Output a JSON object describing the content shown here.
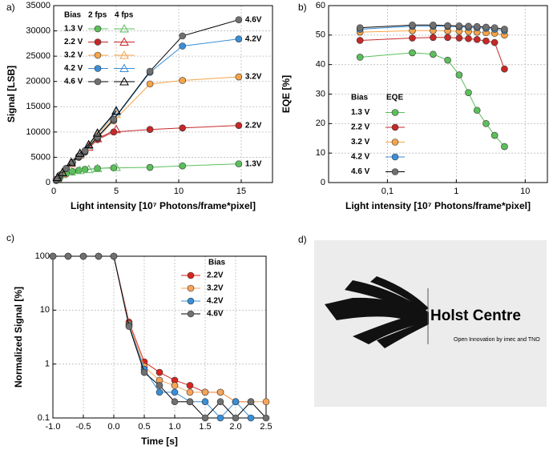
{
  "chart_data": [
    {
      "type": "line",
      "panel_label": "a)",
      "xlabel": "Light intensity [10⁷ Photons/frame*pixel]",
      "ylabel": "Signal [LSB]",
      "xlim": [
        0,
        17.5
      ],
      "ylim": [
        0,
        35000
      ],
      "xticks": [
        0,
        5,
        10,
        15
      ],
      "yticks": [
        0,
        5000,
        10000,
        15000,
        20000,
        25000,
        30000,
        35000
      ],
      "grid": true,
      "legend_title": "Bias",
      "marker_labels": [
        "2 fps",
        "4 fps"
      ],
      "series": [
        {
          "name": "1.3 V",
          "end_label": "1.3V",
          "color": "#5cbf5c",
          "line_color": "#5cbf5c",
          "x": [
            0.2,
            0.5,
            1,
            1.5,
            2,
            2.5,
            3.5,
            4.8,
            7.7,
            10.3,
            14.8
          ],
          "values": [
            400,
            1000,
            1700,
            2200,
            2400,
            2600,
            2800,
            2900,
            3000,
            3300,
            3700
          ],
          "x_4fps": [
            0.3,
            0.7,
            1.4,
            2.1,
            2.8,
            3.5,
            5
          ],
          "values_4fps": [
            800,
            1600,
            2100,
            2400,
            2600,
            2800,
            3000
          ]
        },
        {
          "name": "2.2 V",
          "end_label": "2.2V",
          "color": "#c62828",
          "line_color": "#c62828",
          "x": [
            0.2,
            0.5,
            1,
            1.5,
            2,
            2.5,
            3.5,
            4.8,
            7.7,
            10.3,
            14.8
          ],
          "values": [
            500,
            1400,
            2800,
            4000,
            5000,
            6000,
            8500,
            10000,
            10500,
            10800,
            11300
          ],
          "x_4fps": [
            0.3,
            0.7,
            1.4,
            2.1,
            2.8,
            3.5,
            5
          ],
          "values_4fps": [
            900,
            1800,
            3800,
            5500,
            7000,
            8700,
            10500
          ]
        },
        {
          "name": "3.2 V",
          "end_label": "3.2V",
          "color": "#f5a44a",
          "line_color": "#f5a44a",
          "x": [
            0.2,
            0.5,
            1,
            1.5,
            2,
            2.5,
            3.5,
            4.8,
            7.7,
            10.3,
            14.8
          ],
          "values": [
            550,
            1450,
            2750,
            3900,
            5000,
            6100,
            8800,
            12200,
            19500,
            20200,
            20900
          ],
          "x_4fps": [
            0.3,
            0.7,
            1.4,
            2.1,
            2.8,
            3.5,
            5
          ],
          "values_4fps": [
            950,
            1900,
            3900,
            5600,
            7300,
            9500,
            13500
          ]
        },
        {
          "name": "4.2 V",
          "end_label": "4.2V",
          "color": "#3b8ed6",
          "line_color": "#3b8ed6",
          "x": [
            0.2,
            0.5,
            1,
            1.5,
            2,
            2.5,
            3.5,
            4.8,
            7.7,
            10.3,
            14.8
          ],
          "values": [
            580,
            1480,
            2780,
            3950,
            5100,
            6200,
            8900,
            12400,
            21800,
            27000,
            28400
          ],
          "x_4fps": [
            0.3,
            0.7,
            1.4,
            2.1,
            2.8,
            3.5,
            5
          ],
          "values_4fps": [
            980,
            1950,
            3950,
            5700,
            7400,
            9700,
            14000
          ]
        },
        {
          "name": "4.6 V",
          "end_label": "4.6V",
          "color": "#707070",
          "line_color": "#000000",
          "x": [
            0.2,
            0.5,
            1,
            1.5,
            2,
            2.5,
            3.5,
            4.8,
            7.7,
            10.3,
            14.8
          ],
          "values": [
            600,
            1500,
            2800,
            4000,
            5200,
            6300,
            9000,
            12500,
            22000,
            29000,
            32200
          ],
          "x_4fps": [
            0.3,
            0.7,
            1.4,
            2.1,
            2.8,
            3.5,
            5
          ],
          "values_4fps": [
            1000,
            2000,
            4000,
            5800,
            7500,
            9800,
            14200
          ]
        }
      ]
    },
    {
      "type": "line",
      "panel_label": "b)",
      "xlabel": "Light intensity [10⁷ Photons/frame*pixel]",
      "ylabel": "EQE [%]",
      "xlog": true,
      "xlim": [
        0.014,
        21
      ],
      "ylim": [
        0,
        60
      ],
      "xticks": [
        {
          "value": 0.1,
          "label": "0,1"
        },
        1,
        10
      ],
      "yticks": [
        0,
        10,
        20,
        30,
        40,
        50,
        60
      ],
      "grid": true,
      "legend_title": "Bias",
      "legend_header": "EQE",
      "x": [
        0.04,
        0.23,
        0.46,
        0.75,
        1.1,
        1.5,
        2,
        2.7,
        3.6,
        5
      ],
      "series": [
        {
          "name": "1.3 V",
          "color": "#5cbf5c",
          "line_color": "#5cbf5c",
          "values": [
            42.5,
            44,
            43.5,
            41.5,
            36.5,
            30.5,
            24.5,
            20,
            16,
            12.2
          ]
        },
        {
          "name": "2.2 V",
          "color": "#c62828",
          "line_color": "#c62828",
          "values": [
            48.2,
            49,
            49.2,
            49.2,
            49,
            48.8,
            48.5,
            48,
            47.5,
            38.5
          ]
        },
        {
          "name": "3.2 V",
          "color": "#f5a44a",
          "line_color": "#f5a44a",
          "values": [
            51,
            51.5,
            51.5,
            51.4,
            51.3,
            51.2,
            51,
            50.8,
            50.6,
            50
          ]
        },
        {
          "name": "4.2 V",
          "color": "#3b8ed6",
          "line_color": "#3b8ed6",
          "values": [
            52,
            53,
            53,
            53,
            52.8,
            52.6,
            52.5,
            52.3,
            52,
            51.5
          ]
        },
        {
          "name": "4.6 V",
          "color": "#707070",
          "line_color": "#000000",
          "values": [
            52.5,
            53.4,
            53.4,
            53.2,
            53.1,
            53,
            52.9,
            52.7,
            52.5,
            52
          ]
        }
      ]
    },
    {
      "type": "line",
      "panel_label": "c)",
      "xlabel": "Time [s]",
      "ylabel": "Normalized Signal [%]",
      "ylog": true,
      "xlim": [
        -1,
        2.5
      ],
      "ylim": [
        0.1,
        100
      ],
      "xticks": [
        {
          "value": -1,
          "label": "-1.0"
        },
        {
          "value": -0.5,
          "label": "-0.5"
        },
        {
          "value": 0,
          "label": "0.0"
        },
        0.5,
        {
          "value": 1,
          "label": "1.0"
        },
        1.5,
        {
          "value": 2,
          "label": "2.0"
        },
        2.5
      ],
      "yticks": [
        0.1,
        1,
        10,
        100
      ],
      "grid": true,
      "legend_title": "Bias",
      "x": [
        -1,
        -0.75,
        -0.5,
        -0.25,
        0,
        0.25,
        0.5,
        0.75,
        1,
        1.25,
        1.5,
        1.75,
        2,
        2.25,
        2.5
      ],
      "series": [
        {
          "name": "2.2V",
          "color": "#d7261e",
          "line_color": "#d7261e",
          "values": [
            100,
            100,
            100,
            100,
            100,
            6,
            1.1,
            0.7,
            0.5,
            0.4,
            0.3,
            0.3,
            0.2,
            0.2,
            null
          ]
        },
        {
          "name": "3.2V",
          "color": "#f5a55a",
          "line_color": "#f5a55a",
          "values": [
            100,
            100,
            100,
            100,
            100,
            5.5,
            0.9,
            0.5,
            0.4,
            0.3,
            0.3,
            0.3,
            0.2,
            0.2,
            0.2
          ]
        },
        {
          "name": "4.2V",
          "color": "#3a8fd6",
          "line_color": "#3a8fd6",
          "values": [
            100,
            100,
            100,
            100,
            100,
            5.2,
            0.8,
            0.3,
            0.3,
            0.2,
            0.2,
            0.1,
            0.2,
            0.1,
            null
          ]
        },
        {
          "name": "4.6V",
          "color": "#707070",
          "line_color": "#000000",
          "values": [
            100,
            100,
            100,
            100,
            100,
            5,
            0.7,
            0.4,
            0.2,
            0.2,
            0.1,
            0.2,
            0.1,
            0.2,
            0.1
          ]
        }
      ]
    },
    {
      "type": "image",
      "panel_label": "d)",
      "logo_text": "Holst Centre",
      "tagline": "Open Innovation by imec and TNO"
    }
  ]
}
